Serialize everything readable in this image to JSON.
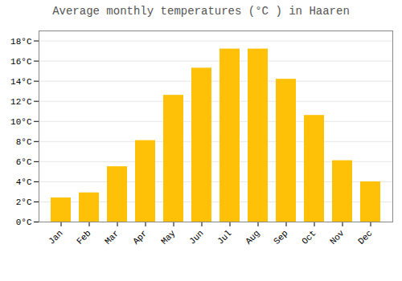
{
  "chart_data": {
    "type": "bar",
    "title": "Average monthly temperatures (°C ) in Haaren",
    "categories": [
      "Jan",
      "Feb",
      "Mar",
      "Apr",
      "May",
      "Jun",
      "Jul",
      "Aug",
      "Sep",
      "Oct",
      "Nov",
      "Dec"
    ],
    "values": [
      2.4,
      2.9,
      5.5,
      8.1,
      12.6,
      15.3,
      17.2,
      17.2,
      14.2,
      10.6,
      6.1,
      4.0
    ],
    "color": "#FFC107",
    "ylim": [
      0,
      19
    ],
    "yticks": [
      {
        "value": 0,
        "label": "0°C"
      },
      {
        "value": 2,
        "label": "2°C"
      },
      {
        "value": 4,
        "label": "4°C"
      },
      {
        "value": 6,
        "label": "6°C"
      },
      {
        "value": 8,
        "label": "8°C"
      },
      {
        "value": 10,
        "label": "10°C"
      },
      {
        "value": 12,
        "label": "12°C"
      },
      {
        "value": 14,
        "label": "14°C"
      },
      {
        "value": 16,
        "label": "16°C"
      },
      {
        "value": 18,
        "label": "18°C"
      }
    ],
    "grid": true
  }
}
